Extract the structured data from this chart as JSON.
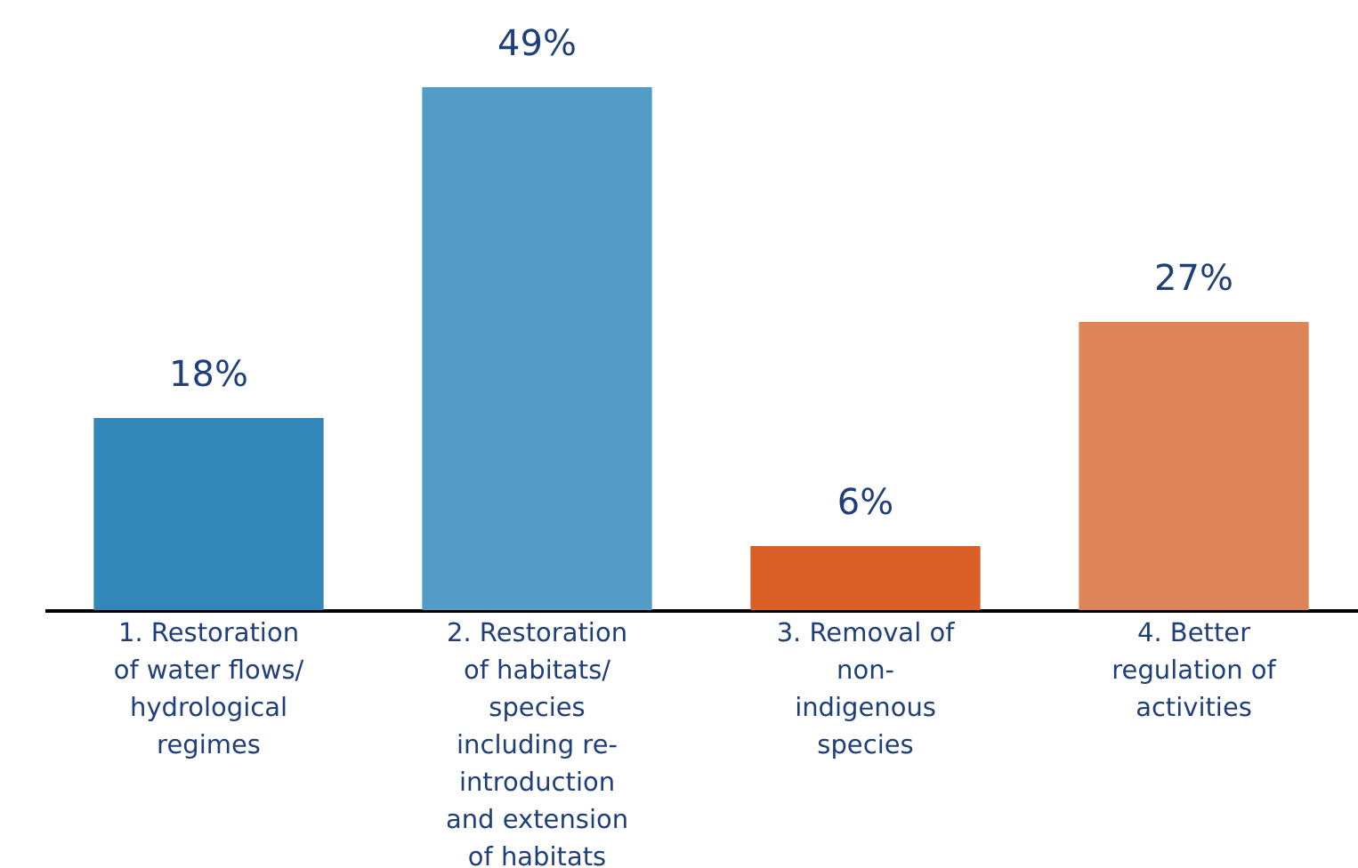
{
  "chart_data": {
    "type": "bar",
    "categories": [
      "1. Restoration\nof water flows/\nhydrological\nregimes",
      "2. Restoration\nof habitats/\nspecies\nincluding re-\nintroduction\nand extension\nof habitats",
      "3. Removal of\nnon-\nindigenous\nspecies",
      "4. Better\nregulation of\nactivities"
    ],
    "values": [
      18,
      49,
      6,
      27
    ],
    "colors": [
      "#3386b9",
      "#529cc7",
      "#d95f27",
      "#dd8558"
    ],
    "value_labels": [
      "18%",
      "49%",
      "6%",
      "27%"
    ]
  }
}
